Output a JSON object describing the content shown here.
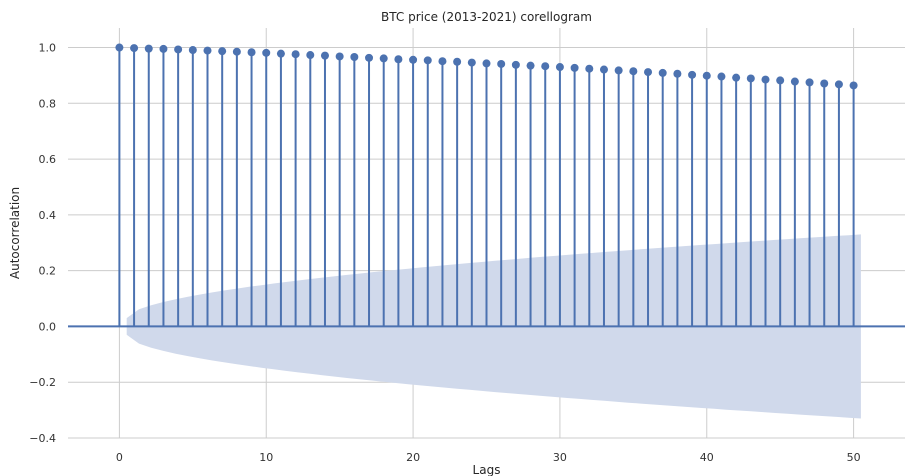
{
  "chart_data": {
    "type": "stem",
    "title": "BTC price (2013-2021) corellogram",
    "xlabel": "Lags",
    "ylabel": "Autocorrelation",
    "xlim": [
      -3.5,
      53.5
    ],
    "ylim": [
      -0.4,
      1.07
    ],
    "x_ticks": [
      0,
      10,
      20,
      30,
      40,
      50
    ],
    "x_tick_labels": [
      "0",
      "10",
      "20",
      "30",
      "40",
      "50"
    ],
    "y_ticks": [
      -0.4,
      -0.2,
      0.0,
      0.2,
      0.4,
      0.6,
      0.8,
      1.0
    ],
    "y_tick_labels": [
      "−0.4",
      "−0.2",
      "0.0",
      "0.2",
      "0.4",
      "0.6",
      "0.8",
      "1.0"
    ],
    "grid": true,
    "series": [
      {
        "x": [
          0,
          1,
          2,
          3,
          4,
          5,
          6,
          7,
          8,
          9,
          10,
          11,
          12,
          13,
          14,
          15,
          16,
          17,
          18,
          19,
          20,
          21,
          22,
          23,
          24,
          25,
          26,
          27,
          28,
          29,
          30,
          31,
          32,
          33,
          34,
          35,
          36,
          37,
          38,
          39,
          40,
          41,
          42,
          43,
          44,
          45,
          46,
          47,
          48,
          49,
          50
        ],
        "values": [
          1.0,
          0.998,
          0.996,
          0.995,
          0.993,
          0.991,
          0.989,
          0.987,
          0.985,
          0.983,
          0.981,
          0.978,
          0.976,
          0.973,
          0.971,
          0.968,
          0.966,
          0.963,
          0.961,
          0.958,
          0.956,
          0.954,
          0.951,
          0.949,
          0.946,
          0.943,
          0.941,
          0.938,
          0.935,
          0.933,
          0.93,
          0.927,
          0.924,
          0.921,
          0.918,
          0.915,
          0.912,
          0.909,
          0.906,
          0.902,
          0.899,
          0.896,
          0.892,
          0.889,
          0.885,
          0.882,
          0.878,
          0.875,
          0.871,
          0.868,
          0.864
        ]
      }
    ],
    "confidence_band": {
      "x_start": 0.5,
      "x_end": 50.5,
      "start_halfwidth": 0.03,
      "end_halfwidth": 0.33
    },
    "colors": {
      "stem": "#4c72b0",
      "band": "#d0d9eb",
      "grid": "#cccccc",
      "background": "#ffffff"
    }
  }
}
